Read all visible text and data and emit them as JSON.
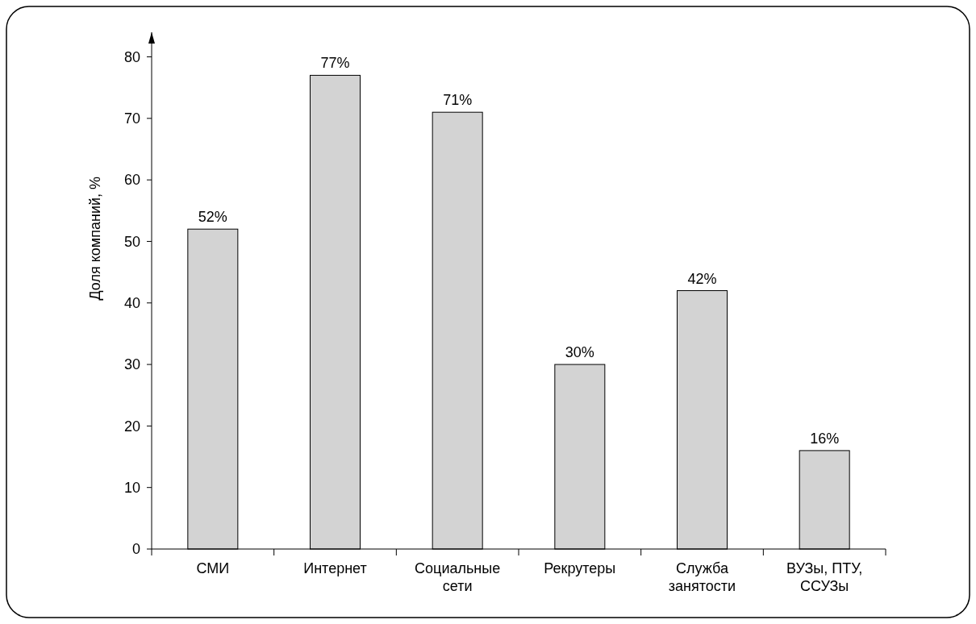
{
  "chart_data": {
    "type": "bar",
    "ylabel": "Доля компаний, %",
    "categories": [
      "СМИ",
      "Интернет",
      "Социальные\nсети",
      "Рекрутеры",
      "Служба\nзанятости",
      "ВУЗы, ПТУ,\nССУЗы"
    ],
    "values": [
      52,
      77,
      71,
      30,
      42,
      16
    ],
    "value_labels": [
      "52%",
      "77%",
      "71%",
      "30%",
      "42%",
      "16%"
    ],
    "color": "#d3d3d3",
    "ylim": [
      0,
      84
    ],
    "yticks": [
      0,
      10,
      20,
      30,
      40,
      50,
      60,
      70,
      80
    ],
    "grid": false
  }
}
